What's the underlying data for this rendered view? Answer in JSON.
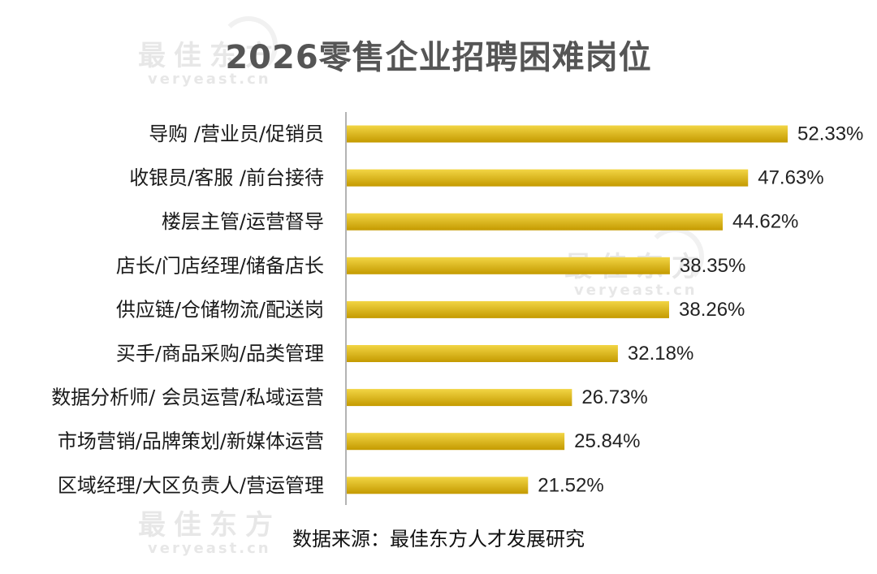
{
  "chart_data": {
    "type": "bar",
    "orientation": "horizontal",
    "title": "2026零售企业招聘困难岗位",
    "categories": [
      "导购 /营业员/促销员",
      "收银员/客服 /前台接待",
      "楼层主管/运营督导",
      "店长/门店经理/储备店长",
      "供应链/仓储物流/配送岗",
      "买手/商品采购/品类管理",
      "数据分析师/ 会员运营/私域运营",
      "市场营销/品牌策划/新媒体运营",
      "区域经理/大区负责人/营运管理"
    ],
    "values": [
      52.33,
      47.63,
      44.62,
      38.35,
      38.26,
      32.18,
      26.73,
      25.84,
      21.52
    ],
    "value_labels": [
      "52.33%",
      "47.63%",
      "44.62%",
      "38.35%",
      "38.26%",
      "32.18%",
      "26.73%",
      "25.84%",
      "21.52%"
    ],
    "xlim": [
      0,
      52.33
    ],
    "grid": false,
    "legend": "none",
    "bar_color_light": "#f2d544",
    "bar_color_dark": "#c49a00"
  },
  "source": "数据来源：最佳东方人才发展研究",
  "watermarks": [
    {
      "cn": "最佳东方",
      "en": "veryeast.cn"
    },
    {
      "cn": "最佳东方",
      "en": "veryeast.cn"
    },
    {
      "cn": "最佳东方",
      "en": "veryeast.cn"
    }
  ]
}
